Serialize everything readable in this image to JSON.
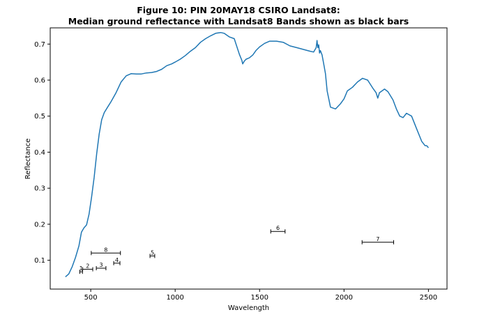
{
  "chart_data": {
    "type": "line",
    "title_line1": "Figure 10: PIN 20MAY18 CSIRO Landsat8:",
    "title_line2": "Median ground reflectance with Landsat8 Bands shown as black bars",
    "xlabel": "Wavelength",
    "ylabel": "Reflectance",
    "xlim": [
      260,
      2610
    ],
    "ylim": [
      0.02,
      0.745
    ],
    "x_ticks": [
      500,
      1000,
      1500,
      2000,
      2500
    ],
    "y_ticks": [
      0.1,
      0.2,
      0.3,
      0.4,
      0.5,
      0.6,
      0.7
    ],
    "grid": false,
    "line_color": "#1f77b4",
    "series": [
      {
        "x": [
          350,
          370,
          390,
          410,
          430,
          445,
          460,
          475,
          490,
          505,
          520,
          535,
          550,
          565,
          580,
          600,
          620,
          650,
          680,
          710,
          740,
          770,
          800,
          830,
          860,
          890,
          920,
          950,
          980,
          1000,
          1030,
          1060,
          1090,
          1120,
          1150,
          1180,
          1210,
          1240,
          1270,
          1290,
          1320,
          1350,
          1380,
          1395,
          1400,
          1410,
          1420,
          1430,
          1440,
          1460,
          1480,
          1500,
          1530,
          1560,
          1600,
          1640,
          1680,
          1720,
          1760,
          1800,
          1820,
          1835,
          1840,
          1845,
          1850,
          1855,
          1860,
          1870,
          1880,
          1890,
          1900,
          1920,
          1950,
          1980,
          2000,
          2020,
          2050,
          2080,
          2110,
          2140,
          2170,
          2190,
          2200,
          2210,
          2240,
          2260,
          2290,
          2310,
          2330,
          2350,
          2370,
          2400,
          2430,
          2460,
          2480,
          2490,
          2500
        ],
        "y": [
          0.054,
          0.062,
          0.082,
          0.108,
          0.14,
          0.178,
          0.19,
          0.198,
          0.228,
          0.275,
          0.33,
          0.395,
          0.45,
          0.49,
          0.51,
          0.525,
          0.54,
          0.565,
          0.595,
          0.612,
          0.618,
          0.617,
          0.617,
          0.62,
          0.621,
          0.624,
          0.63,
          0.64,
          0.645,
          0.65,
          0.658,
          0.668,
          0.68,
          0.69,
          0.705,
          0.715,
          0.723,
          0.73,
          0.732,
          0.73,
          0.72,
          0.715,
          0.672,
          0.655,
          0.645,
          0.653,
          0.658,
          0.66,
          0.662,
          0.67,
          0.683,
          0.692,
          0.702,
          0.708,
          0.708,
          0.705,
          0.695,
          0.69,
          0.685,
          0.68,
          0.678,
          0.69,
          0.71,
          0.69,
          0.698,
          0.675,
          0.682,
          0.67,
          0.645,
          0.618,
          0.57,
          0.525,
          0.52,
          0.535,
          0.548,
          0.57,
          0.58,
          0.595,
          0.605,
          0.6,
          0.578,
          0.565,
          0.55,
          0.565,
          0.575,
          0.568,
          0.545,
          0.52,
          0.5,
          0.496,
          0.508,
          0.5,
          0.465,
          0.43,
          0.418,
          0.418,
          0.412
        ]
      }
    ],
    "bands": [
      {
        "label": "1",
        "x_min": 435,
        "x_max": 451,
        "y": 0.068
      },
      {
        "label": "2",
        "x_min": 452,
        "x_max": 512,
        "y": 0.075
      },
      {
        "label": "3",
        "x_min": 533,
        "x_max": 590,
        "y": 0.078
      },
      {
        "label": "4",
        "x_min": 636,
        "x_max": 673,
        "y": 0.092
      },
      {
        "label": "5",
        "x_min": 851,
        "x_max": 879,
        "y": 0.112
      },
      {
        "label": "6",
        "x_min": 1566,
        "x_max": 1651,
        "y": 0.18
      },
      {
        "label": "7",
        "x_min": 2107,
        "x_max": 2294,
        "y": 0.15
      },
      {
        "label": "8",
        "x_min": 503,
        "x_max": 676,
        "y": 0.12
      }
    ]
  }
}
